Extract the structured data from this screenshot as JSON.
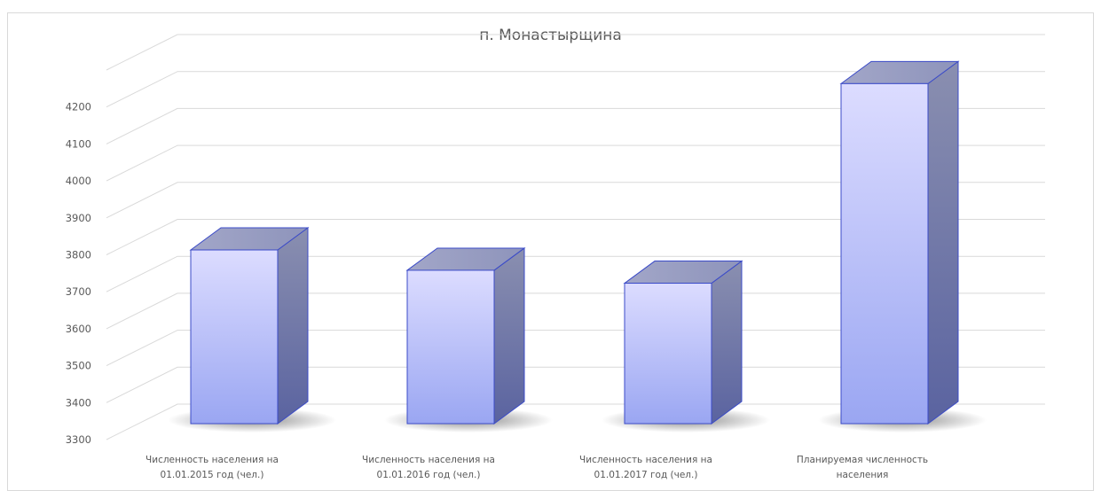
{
  "chart_data": {
    "type": "bar",
    "title": "п. Монастырщина",
    "categories": [
      [
        "Численность населения на",
        "01.01.2015 год (чел.)"
      ],
      [
        "Численность населения на",
        "01.01.2016 год (чел.)"
      ],
      [
        "Численность населения на",
        "01.01.2017 год (чел.)"
      ],
      [
        "Планируемая численность",
        "населения"
      ]
    ],
    "values": [
      3770,
      3715,
      3680,
      4220
    ],
    "ylim": [
      3300,
      4300
    ],
    "yticks": [
      3300,
      3400,
      3500,
      3600,
      3700,
      3800,
      3900,
      4000,
      4100,
      4200
    ],
    "grid": true,
    "style": "3d-column",
    "colors": {
      "bar_top": "#dcdcff",
      "bar_bottom": "#9aa6f2",
      "bar_edge": "#3b4bc8",
      "side": "#6b74a8",
      "gridline": "#d9d9d9",
      "text": "#595959"
    }
  }
}
